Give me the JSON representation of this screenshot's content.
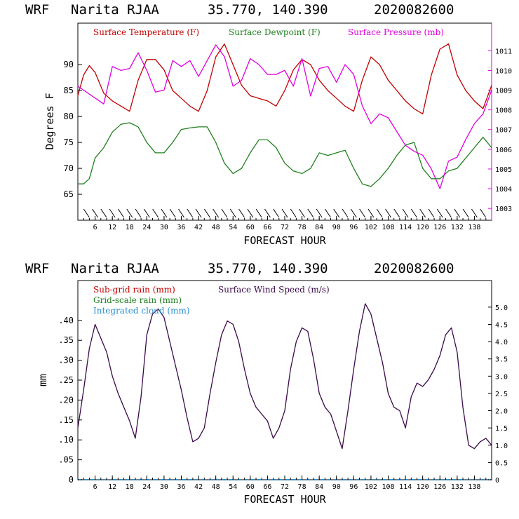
{
  "chart_data": [
    {
      "type": "line",
      "title": {
        "model": "WRF",
        "station": "Narita RJAA",
        "coords": "35.770, 140.390",
        "init": "2020082600"
      },
      "xlabel": "FORECAST HOUR",
      "ylabel": "Degrees F",
      "xlim": [
        0,
        144
      ],
      "ylim": [
        60,
        98
      ],
      "ylim_right": [
        1002.4,
        1012.4
      ],
      "x_ticks": [
        6,
        12,
        18,
        24,
        30,
        36,
        42,
        48,
        54,
        60,
        66,
        72,
        78,
        84,
        90,
        96,
        102,
        108,
        114,
        120,
        126,
        132,
        138
      ],
      "y_ticks": [
        65,
        70,
        75,
        80,
        85,
        90
      ],
      "y_ticks_right": [
        1003,
        1004,
        1005,
        1006,
        1007,
        1008,
        1009,
        1010,
        1011
      ],
      "series": [
        {
          "name": "Surface Temperature (F)",
          "color": "#c00000",
          "axis": "left",
          "x": [
            0,
            2,
            4,
            6,
            9,
            12,
            15,
            18,
            21,
            24,
            27,
            30,
            33,
            36,
            39,
            42,
            45,
            48,
            51,
            54,
            57,
            60,
            63,
            66,
            69,
            72,
            75,
            78,
            81,
            84,
            87,
            90,
            93,
            96,
            99,
            102,
            105,
            108,
            111,
            114,
            117,
            120,
            123,
            126,
            129,
            132,
            135,
            138,
            141,
            144
          ],
          "y": [
            84,
            88,
            89.8,
            88.5,
            84.5,
            83,
            82,
            81,
            87,
            91,
            91,
            89,
            85,
            83.5,
            82,
            81,
            85,
            91.5,
            94,
            90,
            86,
            84,
            83.5,
            83,
            82,
            85,
            89,
            91,
            90,
            87,
            85,
            83.5,
            82,
            81,
            87,
            91.5,
            90,
            87,
            85,
            83,
            81.5,
            80.5,
            88,
            93,
            94,
            88,
            85,
            83,
            81.5,
            86
          ]
        },
        {
          "name": "Surface Dewpoint (F)",
          "color": "#208020",
          "axis": "left",
          "x": [
            0,
            2,
            4,
            6,
            9,
            12,
            15,
            18,
            21,
            24,
            27,
            30,
            33,
            36,
            39,
            42,
            45,
            48,
            51,
            54,
            57,
            60,
            63,
            66,
            69,
            72,
            75,
            78,
            81,
            84,
            87,
            90,
            93,
            96,
            99,
            102,
            105,
            108,
            111,
            114,
            117,
            120,
            123,
            126,
            129,
            132,
            135,
            138,
            141,
            144
          ],
          "y": [
            67,
            67,
            68,
            72,
            74,
            77,
            78.5,
            78.8,
            78,
            75,
            73,
            73,
            75,
            77.5,
            77.8,
            78,
            78,
            75,
            71,
            69,
            70,
            73,
            75.5,
            75.5,
            74,
            71,
            69.5,
            69,
            70,
            73,
            72.5,
            73,
            73.5,
            70,
            67,
            66.5,
            68,
            70,
            72.5,
            74.5,
            75,
            70,
            68,
            68,
            69.5,
            70,
            72,
            74,
            76,
            74
          ]
        },
        {
          "name": "Surface Pressure (mb)",
          "color": "#e000e0",
          "axis": "right",
          "x": [
            0,
            2,
            4,
            6,
            9,
            12,
            15,
            18,
            21,
            24,
            27,
            30,
            33,
            36,
            39,
            42,
            45,
            48,
            51,
            54,
            57,
            60,
            63,
            66,
            69,
            72,
            75,
            78,
            81,
            84,
            87,
            90,
            93,
            96,
            99,
            102,
            105,
            108,
            111,
            114,
            117,
            120,
            123,
            126,
            129,
            132,
            135,
            138,
            141,
            144
          ],
          "y": [
            1009.2,
            1009,
            1008.8,
            1008.6,
            1008.3,
            1010.2,
            1010,
            1010.1,
            1010.9,
            1010,
            1008.9,
            1009,
            1010.5,
            1010.2,
            1010.5,
            1009.7,
            1010.5,
            1011.3,
            1010.7,
            1009.2,
            1009.5,
            1010.6,
            1010.3,
            1009.8,
            1009.8,
            1010,
            1009.2,
            1010.6,
            1008.7,
            1010.1,
            1010.2,
            1009.4,
            1010.3,
            1009.8,
            1008.2,
            1007.3,
            1007.8,
            1007.6,
            1006.9,
            1006.2,
            1005.9,
            1005.7,
            1005,
            1004,
            1005.4,
            1005.6,
            1006.5,
            1007.3,
            1007.8,
            1009
          ]
        }
      ]
    },
    {
      "type": "line",
      "title": {
        "model": "WRF",
        "station": "Narita RJAA",
        "coords": "35.770, 140.390",
        "init": "2020082600"
      },
      "xlabel": "FORECAST HOUR",
      "ylabel": "mm",
      "xlim": [
        0,
        144
      ],
      "ylim": [
        0,
        0.5
      ],
      "ylim_right": [
        0,
        5.77
      ],
      "x_ticks": [
        6,
        12,
        18,
        24,
        30,
        36,
        42,
        48,
        54,
        60,
        66,
        72,
        78,
        84,
        90,
        96,
        102,
        108,
        114,
        120,
        126,
        132,
        138
      ],
      "y_ticks": [
        0,
        0.05,
        0.1,
        0.15,
        0.2,
        0.25,
        0.3,
        0.35,
        0.4
      ],
      "y_tick_labels": [
        "0",
        ".05",
        ".10",
        ".15",
        ".20",
        ".25",
        ".30",
        ".35",
        ".40"
      ],
      "y_ticks_right": [
        0,
        0.5,
        1.0,
        1.5,
        2.0,
        2.5,
        3.0,
        3.5,
        4.0,
        4.5,
        5.0
      ],
      "y_tick_labels_right": [
        "0",
        "0.5",
        "1.0",
        "1.5",
        "2.0",
        "2.5",
        "3.0",
        "3.5",
        "4.0",
        "4.5",
        "5.0"
      ],
      "series": [
        {
          "name": "Sub-grid rain (mm)",
          "color": "#c00000",
          "axis": "left",
          "x": [],
          "y": []
        },
        {
          "name": "Grid-scale rain (mm)",
          "color": "#208020",
          "axis": "left",
          "x": [],
          "y": []
        },
        {
          "name": "Integrated cloud (mm)",
          "color": "#2a90d0",
          "axis": "left",
          "x": [],
          "y": []
        },
        {
          "name": "Surface Wind Speed (m/s)",
          "color": "#3a0a4a",
          "axis": "right",
          "x": [
            0,
            2,
            4,
            6,
            8,
            10,
            12,
            14,
            16,
            18,
            20,
            22,
            24,
            26,
            28,
            30,
            32,
            34,
            36,
            38,
            40,
            42,
            44,
            46,
            48,
            50,
            52,
            54,
            56,
            58,
            60,
            62,
            64,
            66,
            68,
            70,
            72,
            74,
            76,
            78,
            80,
            82,
            84,
            86,
            88,
            90,
            92,
            94,
            96,
            98,
            100,
            102,
            104,
            106,
            108,
            110,
            112,
            114,
            116,
            118,
            120,
            122,
            124,
            126,
            128,
            130,
            132,
            134,
            136,
            138,
            140,
            142,
            144
          ],
          "y": [
            1.5,
            2.6,
            3.8,
            4.5,
            4.1,
            3.7,
            3.0,
            2.5,
            2.1,
            1.7,
            1.2,
            2.4,
            4.2,
            4.8,
            4.95,
            4.7,
            4.0,
            3.3,
            2.6,
            1.8,
            1.1,
            1.2,
            1.5,
            2.5,
            3.4,
            4.2,
            4.6,
            4.5,
            4.0,
            3.2,
            2.5,
            2.1,
            1.9,
            1.7,
            1.2,
            1.5,
            2.0,
            3.2,
            4.0,
            4.4,
            4.3,
            3.5,
            2.5,
            2.1,
            1.9,
            1.4,
            0.9,
            2.0,
            3.2,
            4.3,
            5.1,
            4.8,
            4.1,
            3.4,
            2.5,
            2.1,
            2.0,
            1.5,
            2.4,
            2.8,
            2.7,
            2.9,
            3.2,
            3.6,
            4.2,
            4.4,
            3.7,
            2.1,
            1.0,
            0.9,
            1.1,
            1.2,
            1.0
          ]
        }
      ]
    }
  ]
}
